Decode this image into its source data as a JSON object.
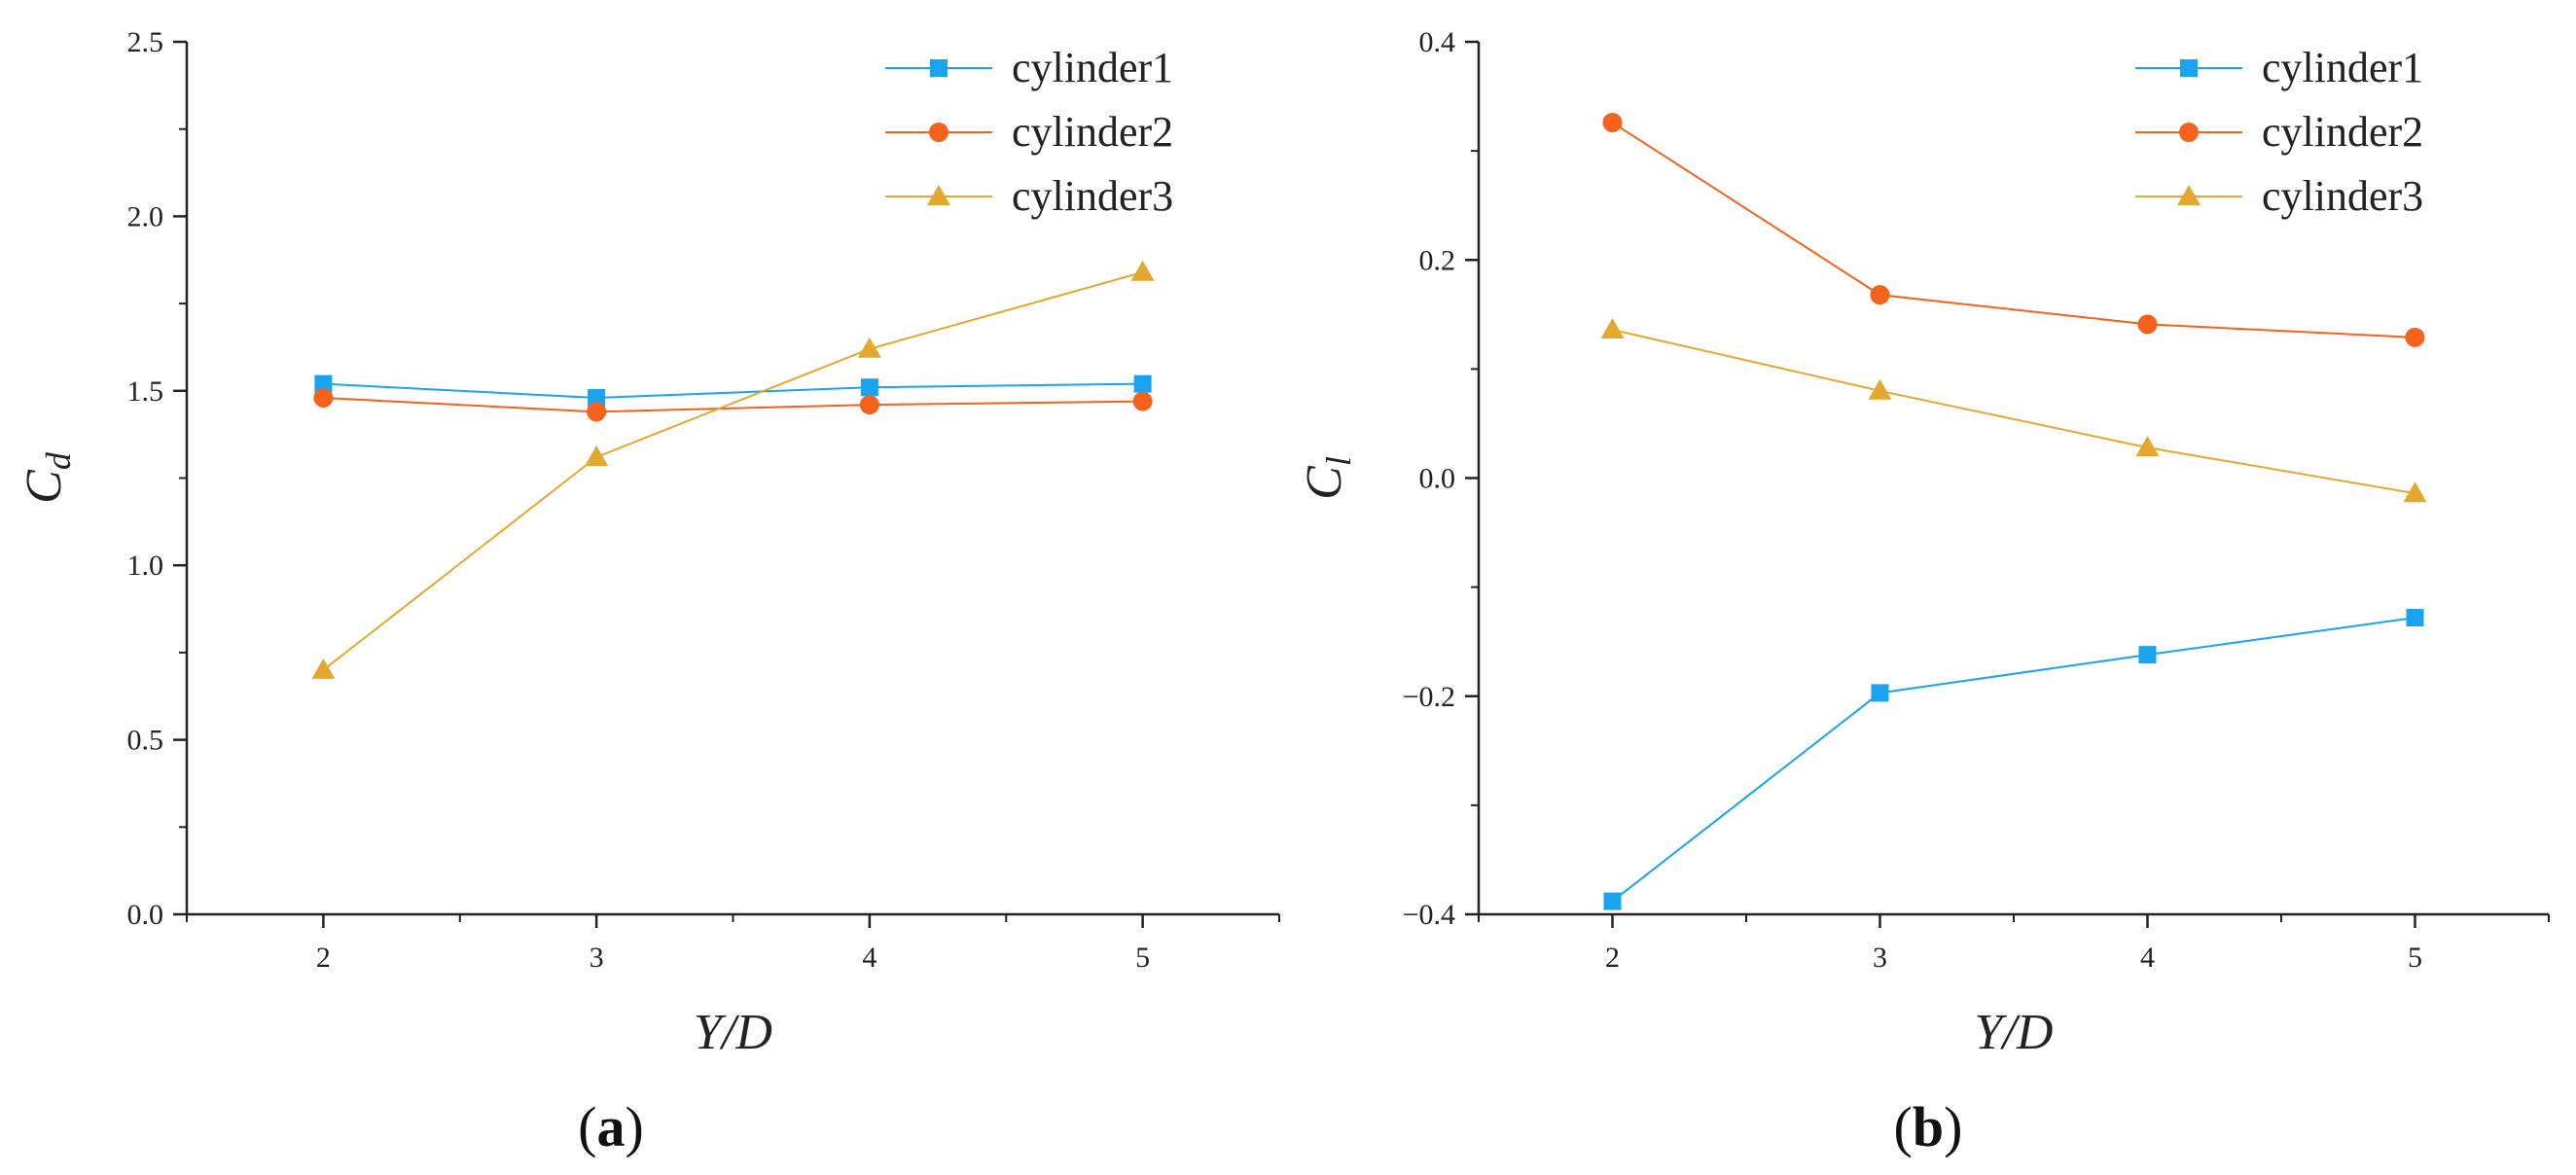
{
  "panel_labels": {
    "a": "a",
    "b": "b"
  },
  "chart_data": [
    {
      "type": "line",
      "panel": "(a)",
      "title": "",
      "xlabel": "Y/D",
      "ylabel_base": "C",
      "ylabel_sub": "d",
      "x": [
        2,
        3,
        4,
        5
      ],
      "xlim": [
        1.5,
        5.5
      ],
      "xticks": [
        "2",
        "3",
        "4",
        "5"
      ],
      "ylim": [
        0.0,
        2.5
      ],
      "yticks": [
        "0.0",
        "0.5",
        "1.0",
        "1.5",
        "2.0",
        "2.5"
      ],
      "grid": false,
      "legend": "top-right",
      "series": [
        {
          "name": "cylinder1",
          "color": "#1aa3f0",
          "marker": "square",
          "values": [
            1.52,
            1.48,
            1.51,
            1.52
          ]
        },
        {
          "name": "cylinder2",
          "color": "#f5621b",
          "marker": "circle",
          "values": [
            1.48,
            1.44,
            1.46,
            1.47
          ]
        },
        {
          "name": "cylinder3",
          "color": "#e5a82e",
          "marker": "triangle",
          "values": [
            0.7,
            1.31,
            1.62,
            1.84
          ]
        }
      ]
    },
    {
      "type": "line",
      "panel": "(b)",
      "title": "",
      "xlabel": "Y/D",
      "ylabel_base": "C",
      "ylabel_sub": "l",
      "x": [
        2,
        3,
        4,
        5
      ],
      "xlim": [
        1.5,
        5.5
      ],
      "xticks": [
        "2",
        "3",
        "4",
        "5"
      ],
      "ylim": [
        -0.4,
        0.4
      ],
      "yticks": [
        "−0.4",
        "−0.2",
        "0.0",
        "0.2",
        "0.4"
      ],
      "grid": false,
      "legend": "top-right",
      "series": [
        {
          "name": "cylinder1",
          "color": "#1aa3f0",
          "marker": "square",
          "values": [
            -0.388,
            -0.197,
            -0.162,
            -0.128
          ]
        },
        {
          "name": "cylinder2",
          "color": "#f5621b",
          "marker": "circle",
          "values": [
            0.326,
            0.168,
            0.141,
            0.129
          ]
        },
        {
          "name": "cylinder3",
          "color": "#e5a82e",
          "marker": "triangle",
          "values": [
            0.136,
            0.08,
            0.028,
            -0.014
          ]
        }
      ]
    }
  ]
}
